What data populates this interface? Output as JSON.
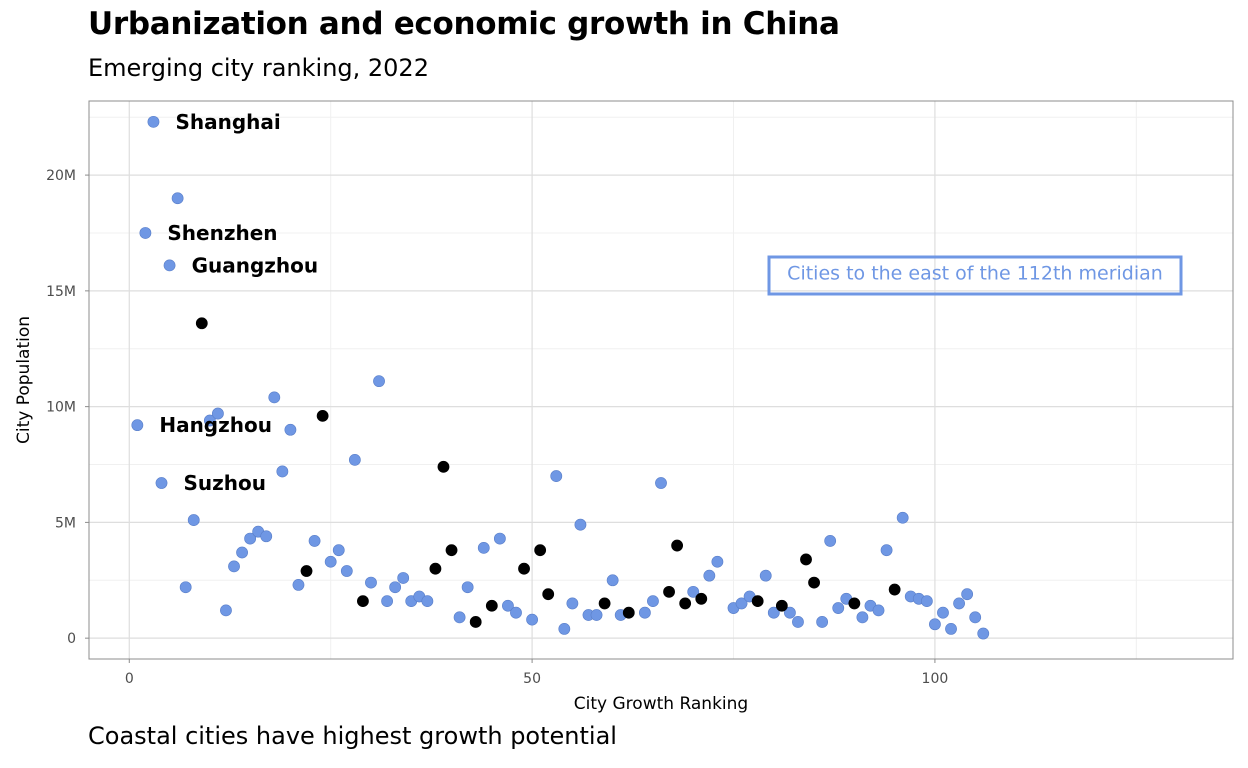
{
  "title": "Urbanization and economic growth in China",
  "subtitle": "Emerging city ranking, 2022",
  "caption": "Coastal cities have highest growth potential",
  "chart_data": {
    "type": "scatter",
    "xlabel": "City Growth Ranking",
    "ylabel": "City Population",
    "xlim": [
      -5,
      137
    ],
    "ylim": [
      -0.9,
      23.2
    ],
    "x_ticks": [
      0,
      50,
      100
    ],
    "x_tick_labels": [
      "0",
      "50",
      "100"
    ],
    "y_ticks": [
      0,
      5,
      10,
      15,
      20
    ],
    "y_tick_labels": [
      "0",
      "5M",
      "10M",
      "15M",
      "20M"
    ],
    "y_unit": "million people",
    "grid": true,
    "colors": {
      "east": "#6f97e4",
      "other": "#000000"
    },
    "annotation": "Cities to the east of the 112th meridian",
    "labels": [
      {
        "text": "Shanghai",
        "x": 3,
        "y": 22.3
      },
      {
        "text": "Shenzhen",
        "x": 2,
        "y": 17.5
      },
      {
        "text": "Guangzhou",
        "x": 5,
        "y": 16.1
      },
      {
        "text": "Hangzhou",
        "x": 1,
        "y": 9.2
      },
      {
        "text": "Suzhou",
        "x": 4,
        "y": 6.7
      }
    ],
    "series": [
      {
        "key": "east",
        "points": [
          [
            1,
            9.2
          ],
          [
            2,
            17.5
          ],
          [
            3,
            22.3
          ],
          [
            4,
            6.7
          ],
          [
            5,
            16.1
          ],
          [
            6,
            19.0
          ],
          [
            7,
            2.2
          ],
          [
            8,
            5.1
          ],
          [
            10,
            9.4
          ],
          [
            11,
            9.7
          ],
          [
            12,
            1.2
          ],
          [
            13,
            3.1
          ],
          [
            14,
            3.7
          ],
          [
            15,
            4.3
          ],
          [
            16,
            4.6
          ],
          [
            17,
            4.4
          ],
          [
            18,
            10.4
          ],
          [
            19,
            7.2
          ],
          [
            20,
            9.0
          ],
          [
            21,
            2.3
          ],
          [
            23,
            4.2
          ],
          [
            25,
            3.3
          ],
          [
            26,
            3.8
          ],
          [
            27,
            2.9
          ],
          [
            28,
            7.7
          ],
          [
            30,
            2.4
          ],
          [
            31,
            11.1
          ],
          [
            32,
            1.6
          ],
          [
            33,
            2.2
          ],
          [
            34,
            2.6
          ],
          [
            35,
            1.6
          ],
          [
            36,
            1.8
          ],
          [
            37,
            1.6
          ],
          [
            41,
            0.9
          ],
          [
            42,
            2.2
          ],
          [
            44,
            3.9
          ],
          [
            46,
            4.3
          ],
          [
            47,
            1.4
          ],
          [
            48,
            1.1
          ],
          [
            50,
            0.8
          ],
          [
            53,
            7.0
          ],
          [
            54,
            0.4
          ],
          [
            55,
            1.5
          ],
          [
            56,
            4.9
          ],
          [
            57,
            1.0
          ],
          [
            58,
            1.0
          ],
          [
            60,
            2.5
          ],
          [
            61,
            1.0
          ],
          [
            64,
            1.1
          ],
          [
            65,
            1.6
          ],
          [
            66,
            6.7
          ],
          [
            70,
            2.0
          ],
          [
            72,
            2.7
          ],
          [
            73,
            3.3
          ],
          [
            75,
            1.3
          ],
          [
            76,
            1.5
          ],
          [
            77,
            1.8
          ],
          [
            79,
            2.7
          ],
          [
            80,
            1.1
          ],
          [
            82,
            1.1
          ],
          [
            83,
            0.7
          ],
          [
            86,
            0.7
          ],
          [
            87,
            4.2
          ],
          [
            88,
            1.3
          ],
          [
            89,
            1.7
          ],
          [
            91,
            0.9
          ],
          [
            92,
            1.4
          ],
          [
            93,
            1.2
          ],
          [
            94,
            3.8
          ],
          [
            96,
            5.2
          ],
          [
            97,
            1.8
          ],
          [
            98,
            1.7
          ],
          [
            99,
            1.6
          ],
          [
            100,
            0.6
          ],
          [
            101,
            1.1
          ],
          [
            102,
            0.4
          ],
          [
            103,
            1.5
          ],
          [
            104,
            1.9
          ],
          [
            105,
            0.9
          ],
          [
            106,
            0.2
          ]
        ]
      },
      {
        "key": "other",
        "points": [
          [
            9,
            13.6
          ],
          [
            22,
            2.9
          ],
          [
            24,
            9.6
          ],
          [
            29,
            1.6
          ],
          [
            38,
            3.0
          ],
          [
            39,
            7.4
          ],
          [
            40,
            3.8
          ],
          [
            43,
            0.7
          ],
          [
            45,
            1.4
          ],
          [
            49,
            3.0
          ],
          [
            51,
            3.8
          ],
          [
            52,
            1.9
          ],
          [
            59,
            1.5
          ],
          [
            62,
            1.1
          ],
          [
            67,
            2.0
          ],
          [
            68,
            4.0
          ],
          [
            69,
            1.5
          ],
          [
            71,
            1.7
          ],
          [
            78,
            1.6
          ],
          [
            81,
            1.4
          ],
          [
            84,
            3.4
          ],
          [
            85,
            2.4
          ],
          [
            90,
            1.5
          ],
          [
            95,
            2.1
          ]
        ]
      }
    ]
  }
}
